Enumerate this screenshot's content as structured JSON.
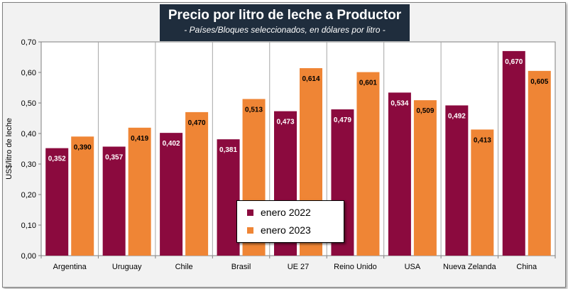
{
  "chart_data": {
    "type": "bar",
    "title": "Precio por litro de leche a Productor",
    "subtitle": "- Países/Bloques seleccionados, en dólares por litro -",
    "xlabel": "",
    "ylabel": "US$/litro de leche",
    "ylim": [
      0,
      0.7
    ],
    "yticks": [
      0,
      0.1,
      0.2,
      0.3,
      0.4,
      0.5,
      0.6,
      0.7
    ],
    "ytick_labels": [
      "0,00",
      "0,10",
      "0,20",
      "0,30",
      "0,40",
      "0,50",
      "0,60",
      "0,70"
    ],
    "grid": false,
    "legend_position": "center-bottom",
    "categories": [
      "Argentina",
      "Uruguay",
      "Chile",
      "Brasil",
      "UE 27",
      "Reino Unido",
      "USA",
      "Nueva Zelanda",
      "China"
    ],
    "series": [
      {
        "name": "enero 2022",
        "color": "#8b0a3e",
        "values": [
          0.352,
          0.357,
          0.402,
          0.381,
          0.473,
          0.479,
          0.534,
          0.492,
          0.67
        ],
        "labels": [
          "0,352",
          "0,357",
          "0,402",
          "0,381",
          "0,473",
          "0,479",
          "0,534",
          "0,492",
          "0,670"
        ]
      },
      {
        "name": "enero 2023",
        "color": "#ef8535",
        "values": [
          0.39,
          0.419,
          0.47,
          0.513,
          0.614,
          0.601,
          0.509,
          0.413,
          0.605
        ],
        "labels": [
          "0,390",
          "0,419",
          "0,470",
          "0,513",
          "0,614",
          "0,601",
          "0,509",
          "0,413",
          "0,605"
        ]
      }
    ]
  }
}
